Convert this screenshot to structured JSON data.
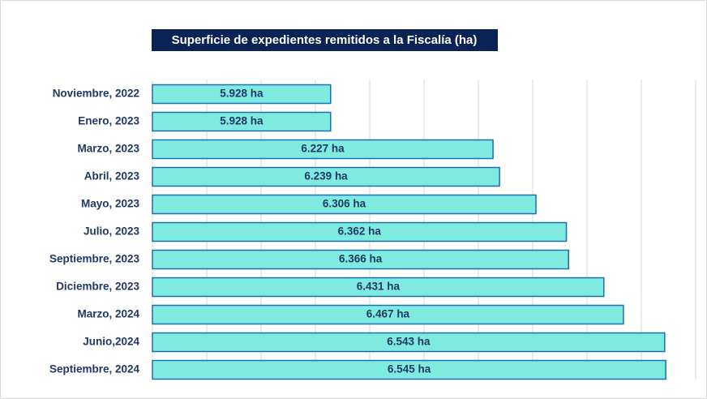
{
  "chart_data": {
    "type": "bar",
    "orientation": "horizontal",
    "title": "Superficie de expedientes remitidos a la Fiscalía (ha)",
    "categories": [
      "Noviembre, 2022",
      "Enero, 2023",
      "Marzo, 2023",
      "Abril, 2023",
      "Mayo, 2023",
      "Julio, 2023",
      "Septiembre, 2023",
      "Diciembre, 2023",
      "Marzo, 2024",
      "Junio,2024",
      "Septiembre, 2024"
    ],
    "values": [
      5928,
      5928,
      6227,
      6239,
      6306,
      6362,
      6366,
      6431,
      6467,
      6543,
      6545
    ],
    "value_labels": [
      "5.928 ha",
      "5.928 ha",
      "6.227 ha",
      "6.239 ha",
      "6.306 ha",
      "6.362 ha",
      "6.366 ha",
      "6.431 ha",
      "6.467 ha",
      "6.543 ha",
      "6.545 ha"
    ],
    "color": "#7eeae0",
    "xlim": [
      5600,
      6600
    ],
    "xticks": [
      5600,
      5700,
      5800,
      5900,
      6000,
      6100,
      6200,
      6300,
      6400,
      6500,
      6600
    ],
    "grid": true
  }
}
